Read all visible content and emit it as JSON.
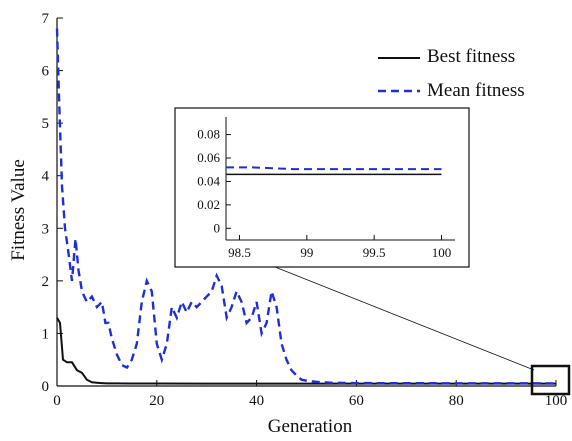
{
  "chart_data": {
    "type": "line",
    "xlabel": "Generation",
    "ylabel": "Fitness Value",
    "xlim": [
      0,
      100
    ],
    "ylim": [
      0,
      7
    ],
    "x_ticks": [
      "0",
      "20",
      "40",
      "60",
      "80",
      "100"
    ],
    "y_ticks": [
      "0",
      "1",
      "2",
      "3",
      "4",
      "5",
      "6",
      "7"
    ],
    "legend": {
      "placement": "top-right",
      "entries": [
        "Best fitness",
        "Mean fitness"
      ]
    },
    "colors": {
      "best": "#111111",
      "mean": "#1f2fd6"
    },
    "series": [
      {
        "name": "Best fitness",
        "style": "solid",
        "x": [
          0,
          0.6,
          1.2,
          2,
          3,
          4,
          5,
          6,
          7,
          8,
          9,
          10,
          12,
          15,
          20,
          30,
          40,
          50,
          60,
          70,
          80,
          90,
          100
        ],
        "y": [
          1.3,
          1.2,
          0.5,
          0.45,
          0.45,
          0.3,
          0.25,
          0.12,
          0.07,
          0.06,
          0.055,
          0.05,
          0.05,
          0.047,
          0.047,
          0.046,
          0.046,
          0.046,
          0.046,
          0.046,
          0.046,
          0.046,
          0.046
        ]
      },
      {
        "name": "Mean fitness",
        "style": "dashed",
        "x": [
          0,
          0.4,
          1,
          1.6,
          2.2,
          3,
          3.7,
          4.3,
          5,
          6,
          7,
          8,
          9,
          9.7,
          10.3,
          11,
          12,
          13,
          14,
          15,
          16,
          17,
          18,
          19,
          20,
          21,
          22,
          23,
          24,
          25,
          26,
          27,
          28,
          29,
          30,
          31,
          32,
          33,
          34,
          35,
          36,
          37,
          38,
          39,
          40,
          41,
          42,
          43,
          44,
          45,
          46,
          47,
          48,
          49,
          50,
          52,
          55,
          60,
          70,
          80,
          90,
          100
        ],
        "y": [
          6.8,
          5.5,
          3.8,
          3.0,
          2.6,
          2.0,
          2.8,
          2.2,
          1.8,
          1.6,
          1.7,
          1.5,
          1.6,
          1.2,
          1.2,
          0.9,
          0.6,
          0.4,
          0.35,
          0.5,
          0.8,
          1.6,
          2.0,
          1.8,
          0.8,
          0.5,
          0.8,
          1.5,
          1.3,
          1.6,
          1.4,
          1.6,
          1.5,
          1.6,
          1.7,
          1.8,
          2.1,
          1.9,
          1.3,
          1.5,
          1.8,
          1.6,
          1.2,
          1.3,
          1.6,
          1.0,
          1.2,
          1.8,
          1.5,
          0.8,
          0.5,
          0.3,
          0.2,
          0.12,
          0.1,
          0.08,
          0.06,
          0.055,
          0.053,
          0.052,
          0.051,
          0.05
        ]
      }
    ],
    "inset": {
      "xlim": [
        98.4,
        100.1
      ],
      "ylim": [
        -0.01,
        0.095
      ],
      "x_ticks": [
        "98.5",
        "99",
        "99.5",
        "100"
      ],
      "y_ticks": [
        "0",
        "0.02",
        "0.04",
        "0.06",
        "0.08"
      ],
      "series": [
        {
          "name": "Best fitness",
          "x": [
            98.4,
            100
          ],
          "y": [
            0.046,
            0.046
          ]
        },
        {
          "name": "Mean fitness",
          "x": [
            98.4,
            98.6,
            98.9,
            100
          ],
          "y": [
            0.052,
            0.052,
            0.0505,
            0.0505
          ]
        }
      ]
    }
  }
}
